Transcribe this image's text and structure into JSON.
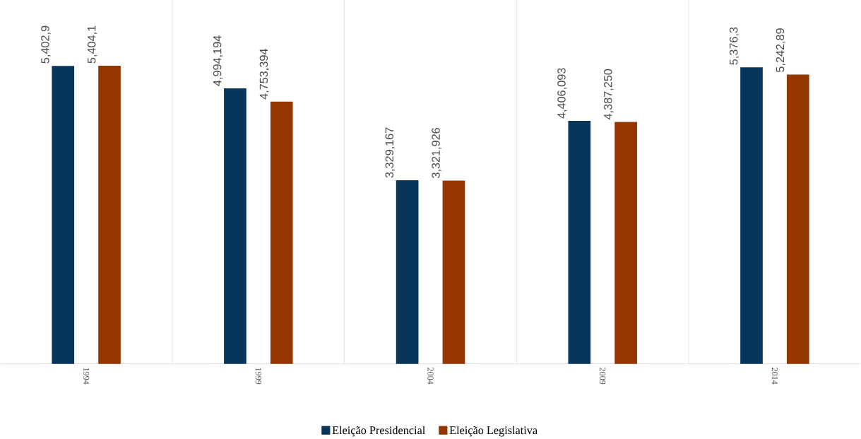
{
  "chart_data": {
    "type": "bar",
    "categories": [
      "1994",
      "1999",
      "2004",
      "2009",
      "2014"
    ],
    "series": [
      {
        "name": "Eleição Presidencial",
        "color": "#08355a",
        "values": [
          5402900,
          4994194,
          3329167,
          4406093,
          5376300
        ],
        "value_labels": [
          "5,402,9",
          "4,994,194",
          "3,329,167",
          "4,406,093",
          "5,376,3"
        ]
      },
      {
        "name": "Eleição Legislativa",
        "color": "#953500",
        "values": [
          5404100,
          4753394,
          3321926,
          4387250,
          5242890
        ],
        "value_labels": [
          "5,404,1",
          "4,753,394",
          "3,321,926",
          "4,387,250",
          "5,242,89"
        ]
      }
    ],
    "grid": "x",
    "legend": "bottom"
  }
}
